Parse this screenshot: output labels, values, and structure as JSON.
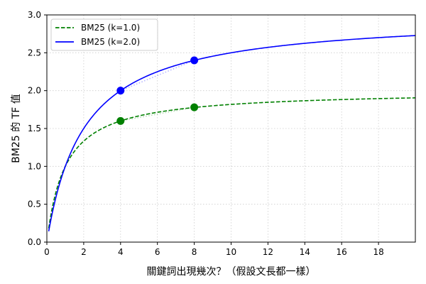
{
  "chart_data": {
    "type": "line",
    "title": "",
    "xlabel": "關鍵詞出現幾次？（假設文長都一樣）",
    "ylabel": "BM25 的 TF 值",
    "xlim": [
      0,
      20
    ],
    "ylim": [
      0,
      3.0
    ],
    "xticks": [
      0,
      2,
      4,
      6,
      8,
      10,
      12,
      14,
      16,
      18
    ],
    "xtick_labels": [
      "0",
      "2",
      "4",
      "6",
      "8",
      "10",
      "12",
      "14",
      "16",
      "18"
    ],
    "yticks": [
      0.0,
      0.5,
      1.0,
      1.5,
      2.0,
      2.5,
      3.0
    ],
    "ytick_labels": [
      "0.0",
      "0.5",
      "1.0",
      "1.5",
      "2.0",
      "2.5",
      "3.0"
    ],
    "grid": true,
    "legend_position": "upper left",
    "formula": "tf*(k+1)/(tf+k)",
    "x_range": [
      0.1,
      20
    ],
    "series": [
      {
        "name": "BM25 (k=1.0)",
        "k": 1.0,
        "color": "#008000",
        "style": "dashed",
        "sample_x": [
          0.1,
          1,
          2,
          4,
          6,
          8,
          10,
          12,
          14,
          16,
          18,
          20
        ],
        "sample_y": [
          0.18,
          1.0,
          1.33,
          1.6,
          1.71,
          1.78,
          1.82,
          1.85,
          1.87,
          1.88,
          1.89,
          1.9
        ],
        "markers": [
          {
            "x": 4,
            "y": 1.6
          },
          {
            "x": 8,
            "y": 1.78
          }
        ]
      },
      {
        "name": "BM25 (k=2.0)",
        "k": 2.0,
        "color": "#0000ff",
        "style": "solid",
        "sample_x": [
          0.1,
          1,
          2,
          4,
          6,
          8,
          10,
          12,
          14,
          16,
          18,
          20
        ],
        "sample_y": [
          0.14,
          1.0,
          1.5,
          2.0,
          2.25,
          2.4,
          2.5,
          2.57,
          2.63,
          2.67,
          2.7,
          2.73
        ],
        "markers": [
          {
            "x": 4,
            "y": 2.0
          },
          {
            "x": 8,
            "y": 2.4
          }
        ]
      }
    ],
    "annotations": [
      {
        "type": "dotted-chord",
        "series": "BM25 (k=1.0)",
        "from": [
          4,
          1.6
        ],
        "to": [
          8,
          1.78
        ]
      },
      {
        "type": "dotted-chord",
        "series": "BM25 (k=2.0)",
        "from": [
          4,
          2.0
        ],
        "to": [
          8,
          2.4
        ]
      }
    ]
  }
}
